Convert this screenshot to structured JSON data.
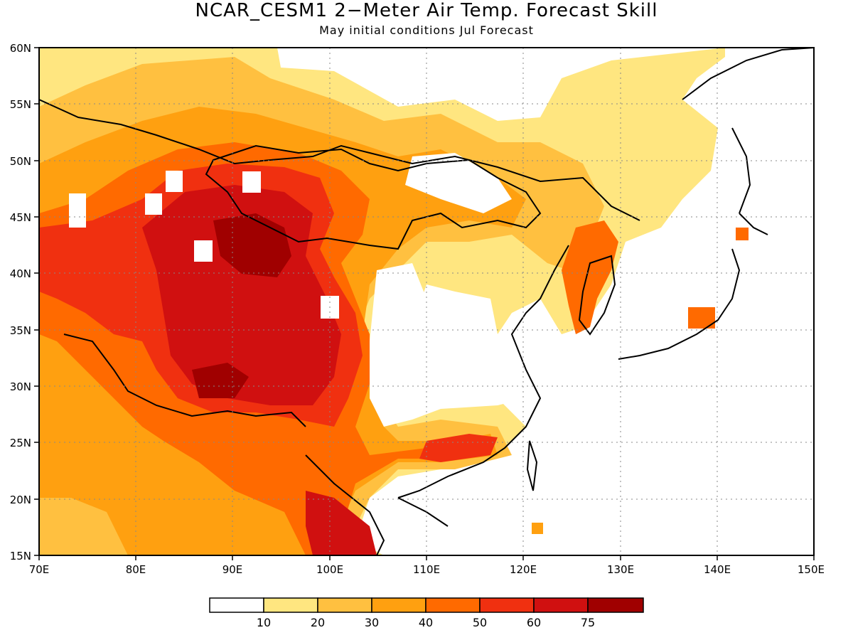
{
  "title": "NCAR_CESM1 2−Meter Air Temp. Forecast Skill",
  "subtitle": "May initial conditions  Jul Forecast",
  "map": {
    "lon_range": [
      70,
      150
    ],
    "lat_range": [
      15,
      60
    ],
    "lon_ticks": [
      "70E",
      "80E",
      "90E",
      "100E",
      "110E",
      "120E",
      "130E",
      "140E",
      "150E"
    ],
    "lat_ticks": [
      "60N",
      "55N",
      "50N",
      "45N",
      "40N",
      "35N",
      "30N",
      "25N",
      "20N",
      "15N"
    ],
    "gridlines": "dotted"
  },
  "colorbar": {
    "colors": [
      "#ffffff",
      "#ffe680",
      "#ffc040",
      "#ffa010",
      "#ff6a00",
      "#f03010",
      "#d01010",
      "#a00000"
    ],
    "labels": [
      "10",
      "20",
      "30",
      "40",
      "50",
      "60",
      "75"
    ]
  }
}
